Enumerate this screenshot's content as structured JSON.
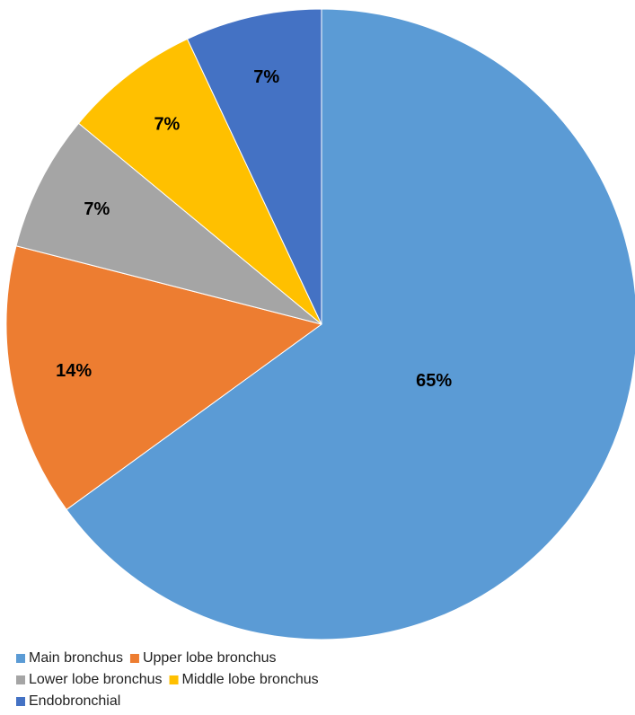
{
  "chart_data": {
    "type": "pie",
    "categories": [
      "Main bronchus",
      "Upper lobe bronchus",
      "Lower lobe bronchus",
      "Middle lobe bronchus",
      "Endobronchial"
    ],
    "values": [
      65,
      14,
      7,
      7,
      7
    ],
    "value_labels": [
      "65%",
      "14%",
      "7%",
      "7%",
      "7%"
    ],
    "colors": [
      "#5b9bd5",
      "#ed7d31",
      "#a5a5a5",
      "#ffc000",
      "#4472c4"
    ],
    "legend": "bottom-left"
  }
}
